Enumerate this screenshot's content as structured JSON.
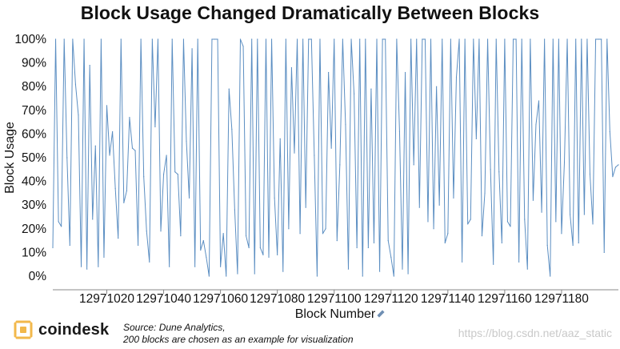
{
  "title": "Block Usage Changed Dramatically Between Blocks",
  "source": {
    "line1": "Source: Dune Analytics,",
    "line2": "200 blocks are chosen as an example for visualization"
  },
  "brand": {
    "name": "coindesk",
    "icon": "coindesk-logo-icon",
    "accent": "#f2b84b"
  },
  "watermark": "https://blog.csdn.net/aaz_static",
  "chart_data": {
    "type": "line",
    "title": "Block Usage Changed Dramatically Between Blocks",
    "xlabel": "Block Number",
    "ylabel": "Block Usage",
    "xlim": [
      12971001,
      12971200
    ],
    "ylim": [
      0,
      100
    ],
    "x_ticks": [
      12971020,
      12971040,
      12971060,
      12971080,
      12971100,
      12971120,
      12971140,
      12971160,
      12971180
    ],
    "x_tick_labels": [
      "12971020",
      "12971040",
      "12971060",
      "12971080",
      "12971100",
      "12971120",
      "12971140",
      "12971160",
      "12971180"
    ],
    "y_ticks": [
      0,
      10,
      20,
      30,
      40,
      50,
      60,
      70,
      80,
      90,
      100
    ],
    "y_tick_labels": [
      "0%",
      "10%",
      "20%",
      "30%",
      "40%",
      "50%",
      "60%",
      "70%",
      "80%",
      "90%",
      "100%"
    ],
    "grid": false,
    "line_color": "#5b8ec2",
    "series": [
      {
        "x_start": 12971001,
        "x_step": 1,
        "values": [
          12,
          100,
          23,
          21,
          100,
          50,
          13,
          100,
          81,
          68,
          4,
          100,
          3,
          89,
          24,
          55,
          4,
          100,
          8,
          72,
          51,
          61,
          37,
          16,
          100,
          31,
          36,
          67,
          54,
          53,
          13,
          100,
          42,
          19,
          6,
          100,
          63,
          100,
          19,
          43,
          51,
          4,
          100,
          44,
          43,
          17,
          100,
          57,
          33,
          96,
          4,
          100,
          11,
          15,
          8,
          0,
          100,
          100,
          100,
          4,
          18,
          0,
          79,
          62,
          28,
          1,
          100,
          97,
          17,
          12,
          100,
          1,
          100,
          12,
          9,
          100,
          8,
          100,
          33,
          9,
          58,
          2,
          100,
          20,
          88,
          52,
          100,
          18,
          100,
          29,
          100,
          100,
          51,
          0,
          100,
          18,
          20,
          86,
          54,
          100,
          15,
          47,
          100,
          64,
          3,
          100,
          77,
          12,
          100,
          0,
          100,
          12,
          79,
          14,
          100,
          2,
          100,
          100,
          15,
          8,
          0,
          100,
          61,
          3,
          86,
          1,
          100,
          47,
          100,
          29,
          100,
          100,
          23,
          100,
          20,
          80,
          30,
          100,
          14,
          18,
          100,
          33,
          84,
          100,
          6,
          100,
          22,
          24,
          100,
          58,
          100,
          17,
          35,
          100,
          45,
          5,
          100,
          44,
          14,
          100,
          23,
          21,
          100,
          100,
          6,
          100,
          24,
          3,
          100,
          32,
          64,
          74,
          27,
          100,
          13,
          0,
          100,
          23,
          100,
          18,
          48,
          100,
          26,
          13,
          100,
          14,
          100,
          26,
          100,
          43,
          22,
          100,
          100,
          100,
          10,
          100,
          61,
          42,
          46,
          47
        ]
      }
    ]
  }
}
